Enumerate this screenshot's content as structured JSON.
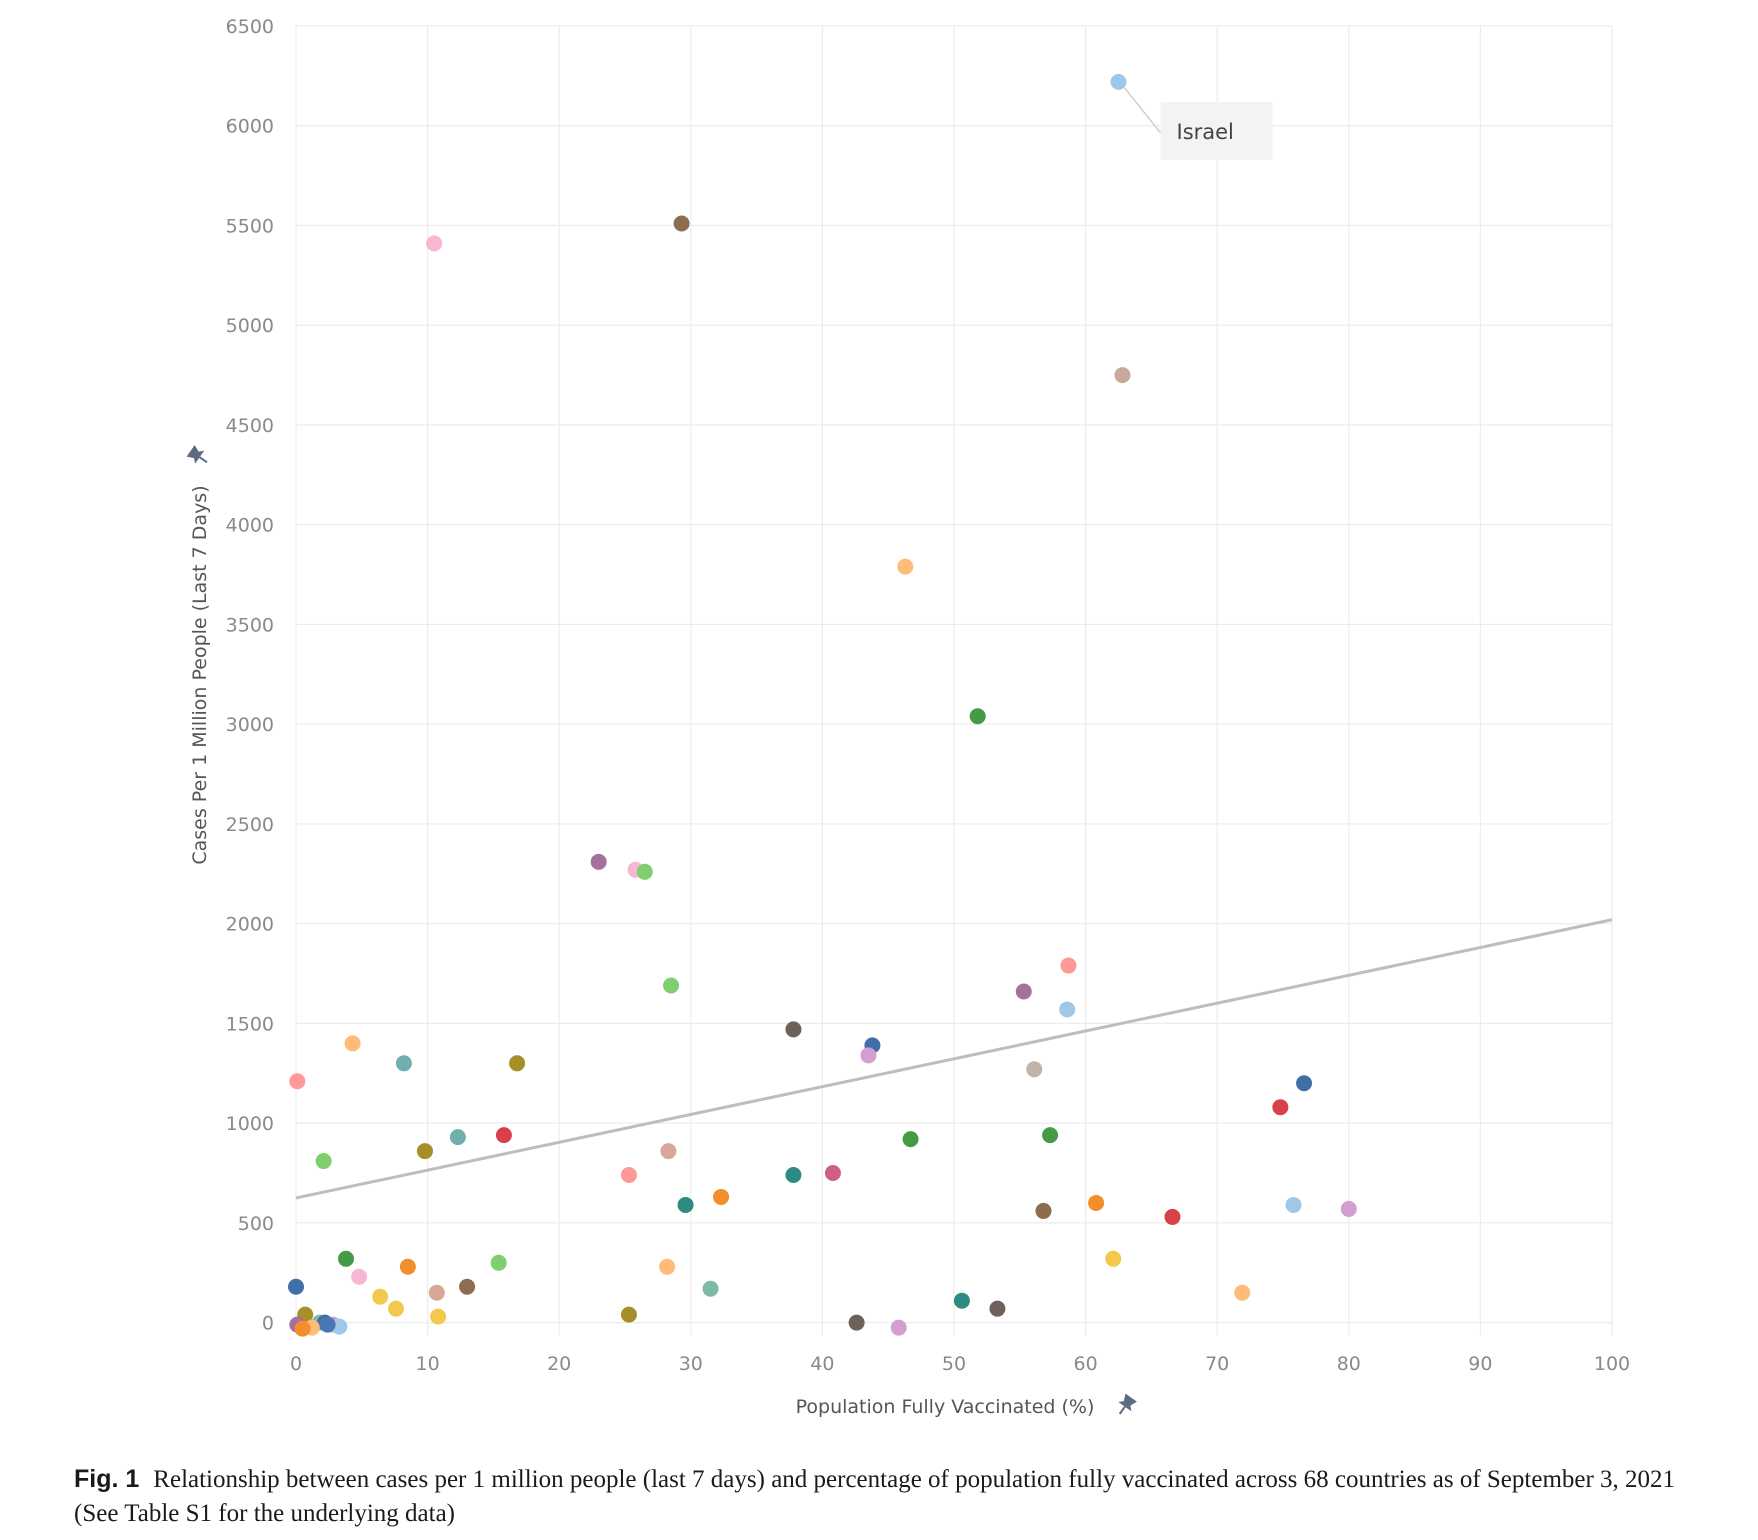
{
  "chart_data": {
    "type": "scatter",
    "xlabel": "Population Fully Vaccinated (%)",
    "ylabel": "Cases Per 1 Million People (Last 7 Days)",
    "xlim": [
      0,
      100
    ],
    "ylim": [
      -50,
      6500
    ],
    "x_ticks": [
      "0",
      "10",
      "20",
      "30",
      "40",
      "50",
      "60",
      "70",
      "80",
      "90",
      "100"
    ],
    "y_ticks": [
      "0",
      "500",
      "1000",
      "1500",
      "2000",
      "2500",
      "3000",
      "3500",
      "4000",
      "4500",
      "5000",
      "5500",
      "6000",
      "6500"
    ],
    "grid": true,
    "annotation": {
      "label": "Israel",
      "x": 62.5,
      "y": 6220
    },
    "trendline": {
      "x": [
        0,
        100
      ],
      "y": [
        625,
        2020
      ]
    },
    "points": [
      {
        "x": 62.5,
        "y": 6220,
        "color": "#9fc8e8"
      },
      {
        "x": 10.5,
        "y": 5410,
        "color": "#f7b6d2"
      },
      {
        "x": 29.3,
        "y": 5510,
        "color": "#8c6d4f"
      },
      {
        "x": 62.8,
        "y": 4750,
        "color": "#c9a89a"
      },
      {
        "x": 46.3,
        "y": 3790,
        "color": "#ffbb78"
      },
      {
        "x": 51.8,
        "y": 3040,
        "color": "#459a45"
      },
      {
        "x": 23.0,
        "y": 2310,
        "color": "#a3719e"
      },
      {
        "x": 25.8,
        "y": 2270,
        "color": "#f7b6d2"
      },
      {
        "x": 26.5,
        "y": 2260,
        "color": "#7fcf6f"
      },
      {
        "x": 58.7,
        "y": 1790,
        "color": "#ff9896"
      },
      {
        "x": 28.5,
        "y": 1690,
        "color": "#7fcf6f"
      },
      {
        "x": 55.3,
        "y": 1660,
        "color": "#a3719e"
      },
      {
        "x": 58.6,
        "y": 1570,
        "color": "#9fc8e8"
      },
      {
        "x": 37.8,
        "y": 1470,
        "color": "#6e605a"
      },
      {
        "x": 4.3,
        "y": 1400,
        "color": "#ffbb78"
      },
      {
        "x": 43.8,
        "y": 1390,
        "color": "#3f6fa6"
      },
      {
        "x": 43.5,
        "y": 1340,
        "color": "#d39ed2"
      },
      {
        "x": 8.2,
        "y": 1300,
        "color": "#6fb0ae"
      },
      {
        "x": 16.8,
        "y": 1300,
        "color": "#a68e28"
      },
      {
        "x": 56.1,
        "y": 1270,
        "color": "#c2b2a8"
      },
      {
        "x": 0.1,
        "y": 1210,
        "color": "#ff9896"
      },
      {
        "x": 76.6,
        "y": 1200,
        "color": "#3f6fa6"
      },
      {
        "x": 74.8,
        "y": 1080,
        "color": "#d9414a"
      },
      {
        "x": 15.8,
        "y": 940,
        "color": "#d9414a"
      },
      {
        "x": 57.3,
        "y": 940,
        "color": "#459a45"
      },
      {
        "x": 12.3,
        "y": 930,
        "color": "#6fb0ae"
      },
      {
        "x": 46.7,
        "y": 920,
        "color": "#459a45"
      },
      {
        "x": 9.8,
        "y": 860,
        "color": "#a68e28"
      },
      {
        "x": 28.3,
        "y": 860,
        "color": "#d9a79a"
      },
      {
        "x": 2.1,
        "y": 810,
        "color": "#7fcf6f"
      },
      {
        "x": 40.8,
        "y": 750,
        "color": "#cf5e85"
      },
      {
        "x": 25.3,
        "y": 740,
        "color": "#ff9896"
      },
      {
        "x": 37.8,
        "y": 740,
        "color": "#2e8b82"
      },
      {
        "x": 32.3,
        "y": 630,
        "color": "#f28e2b"
      },
      {
        "x": 60.8,
        "y": 600,
        "color": "#f28e2b"
      },
      {
        "x": 29.6,
        "y": 590,
        "color": "#2e8b82"
      },
      {
        "x": 75.8,
        "y": 590,
        "color": "#9fc8e8"
      },
      {
        "x": 80.0,
        "y": 570,
        "color": "#d39ed2"
      },
      {
        "x": 56.8,
        "y": 560,
        "color": "#8c6d4f"
      },
      {
        "x": 66.6,
        "y": 530,
        "color": "#d9414a"
      },
      {
        "x": 3.8,
        "y": 320,
        "color": "#459a45"
      },
      {
        "x": 62.1,
        "y": 320,
        "color": "#f2c94c"
      },
      {
        "x": 15.4,
        "y": 300,
        "color": "#7fcf6f"
      },
      {
        "x": 8.5,
        "y": 280,
        "color": "#f28e2b"
      },
      {
        "x": 28.2,
        "y": 280,
        "color": "#ffbb78"
      },
      {
        "x": 4.8,
        "y": 230,
        "color": "#f7b6d2"
      },
      {
        "x": 0.0,
        "y": 180,
        "color": "#3f6fa6"
      },
      {
        "x": 13.0,
        "y": 180,
        "color": "#8c6d4f"
      },
      {
        "x": 31.5,
        "y": 170,
        "color": "#7fb9a8"
      },
      {
        "x": 10.7,
        "y": 150,
        "color": "#d9a79a"
      },
      {
        "x": 71.9,
        "y": 150,
        "color": "#ffbb78"
      },
      {
        "x": 6.4,
        "y": 130,
        "color": "#f2c94c"
      },
      {
        "x": 50.6,
        "y": 110,
        "color": "#2e8b82"
      },
      {
        "x": 7.6,
        "y": 70,
        "color": "#f2c94c"
      },
      {
        "x": 53.3,
        "y": 70,
        "color": "#6e605a"
      },
      {
        "x": 0.7,
        "y": 40,
        "color": "#a68e28"
      },
      {
        "x": 10.8,
        "y": 30,
        "color": "#f2c94c"
      },
      {
        "x": 25.3,
        "y": 40,
        "color": "#a68e28"
      },
      {
        "x": 42.6,
        "y": 0,
        "color": "#6e605a"
      },
      {
        "x": 0.1,
        "y": -10,
        "color": "#a3719e"
      },
      {
        "x": 1.8,
        "y": 0,
        "color": "#7fb9a8"
      },
      {
        "x": 2.2,
        "y": 0,
        "color": "#3f6fa6"
      },
      {
        "x": 2.8,
        "y": -10,
        "color": "#d39ed2"
      },
      {
        "x": 3.3,
        "y": -20,
        "color": "#9fc8e8"
      },
      {
        "x": 1.2,
        "y": -25,
        "color": "#ffbb78"
      },
      {
        "x": 45.8,
        "y": -25,
        "color": "#d39ed2"
      },
      {
        "x": 2.4,
        "y": -10,
        "color": "#4a78b5"
      },
      {
        "x": 0.5,
        "y": -30,
        "color": "#f28e2b"
      }
    ]
  },
  "caption": {
    "label": "Fig. 1",
    "text": "Relationship between cases per 1 million people (last 7 days) and percentage of population fully vaccinated across 68 countries as of September 3, 2021 (See Table S1 for the underlying data)"
  }
}
